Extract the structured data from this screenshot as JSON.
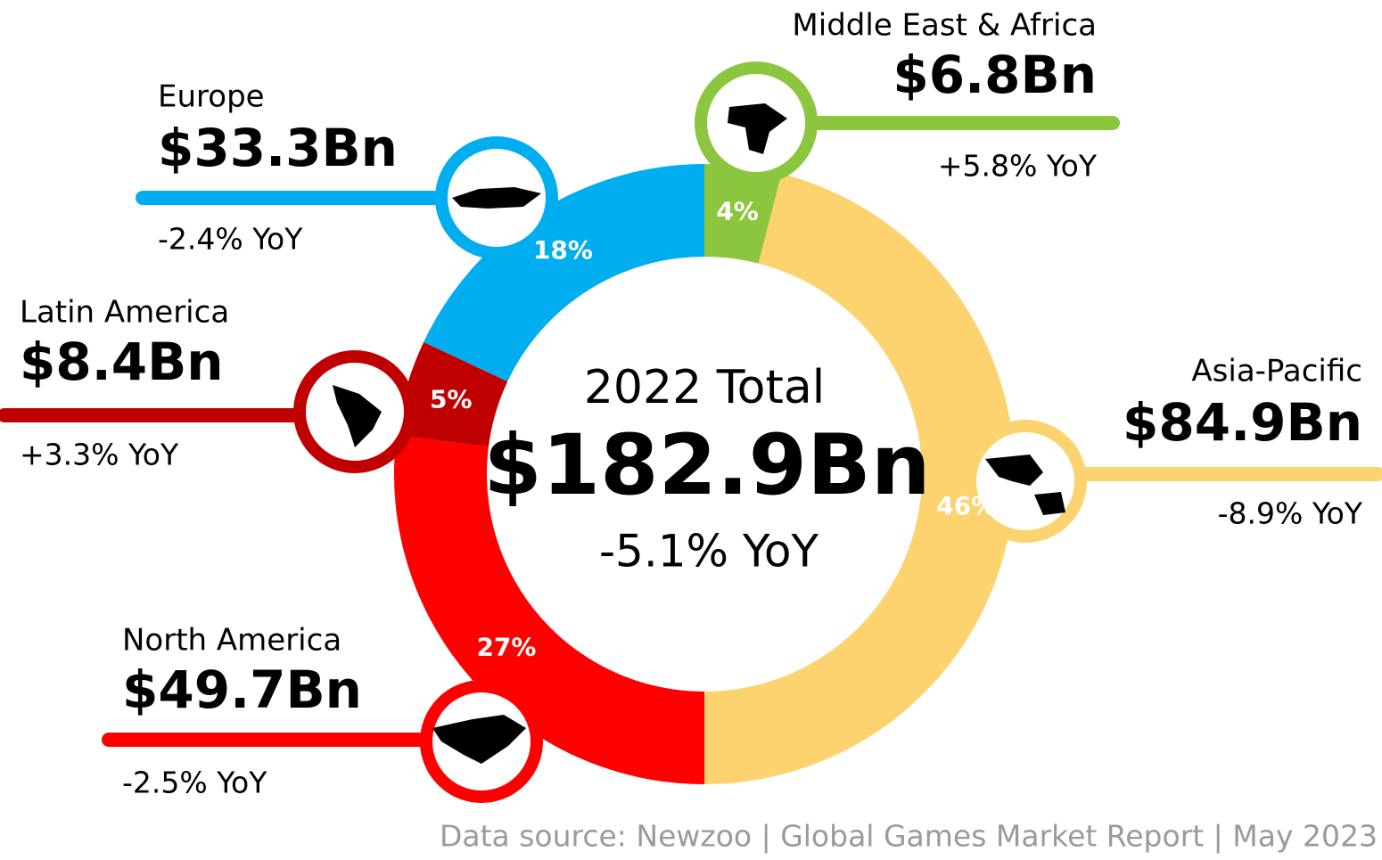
{
  "chart_data": {
    "type": "donut",
    "center_title": "2022 Total",
    "center_value": "$182.9Bn",
    "center_subtitle": "-5.1% YoY",
    "categories": [
      "Middle East & Africa",
      "Asia-Pacific",
      "North America",
      "Latin America",
      "Europe"
    ],
    "values": [
      4,
      46,
      27,
      5,
      18
    ],
    "value_labels": [
      "4%",
      "46%",
      "27%",
      "5%",
      "18%"
    ],
    "colors": [
      "#8cc63e",
      "#fdd36f",
      "#ff0000",
      "#c00000",
      "#00aeef"
    ],
    "amounts": [
      "$6.8Bn",
      "$84.9Bn",
      "$49.7Bn",
      "$8.4Bn",
      "$33.3Bn"
    ],
    "yoy": [
      "+5.8% YoY",
      "-8.9% YoY",
      "-2.5% YoY",
      "+3.3% YoY",
      "-2.4% YoY"
    ],
    "source": "Data source: Newzoo | Global Games Market Report | May 2023"
  }
}
